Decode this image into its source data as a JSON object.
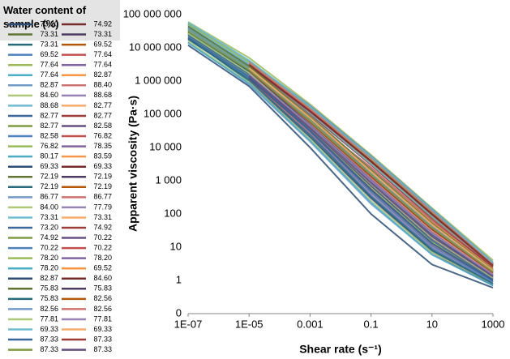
{
  "chart_data": {
    "type": "line",
    "y_label": "Apparent viscosity (Pa·s)",
    "x_label": "Shear rate (s⁻¹)",
    "legend_title": "Water content of sample (%)",
    "log_x": true,
    "log_y": true,
    "grid": false,
    "legend_position": "left",
    "x": [
      1e-07,
      1e-05,
      0.001,
      0.1,
      10,
      1000
    ],
    "xlim": [
      1e-07,
      1000
    ],
    "xticks": [
      {
        "value": 1e-07,
        "label": "1E-07"
      },
      {
        "value": 1e-05,
        "label": "1E-05"
      },
      0.001,
      0.1,
      10,
      1000
    ],
    "ylim": [
      0.1,
      100000000
    ],
    "yticks": [
      {
        "value": 0.1,
        "label": "0"
      },
      1,
      10,
      100,
      {
        "value": 1000,
        "label": "1 000"
      },
      {
        "value": 10000,
        "label": "10 000"
      },
      {
        "value": 100000,
        "label": "100 000"
      },
      {
        "value": 1000000,
        "label": "1 000 000"
      },
      {
        "value": 10000000,
        "label": "10 000 000"
      },
      {
        "value": 100000000,
        "label": "100 000 000"
      }
    ],
    "series": [
      {
        "name": "73.20",
        "color": "#2c4d75",
        "values": [
          30000000,
          2000000,
          60000,
          1500,
          40,
          2
        ]
      },
      {
        "name": "74.92",
        "color": "#772c2a",
        "values": [
          null,
          1500000,
          40000,
          800,
          20,
          1.5
        ]
      },
      {
        "name": "73.31",
        "color": "#5f7530",
        "values": [
          50000000,
          3000000,
          100000,
          3000,
          80,
          3
        ]
      },
      {
        "name": "73.31",
        "color": "#4d3b62",
        "values": [
          null,
          2500000,
          80000,
          2000,
          50,
          2
        ]
      },
      {
        "name": "73.31",
        "color": "#276a7c",
        "values": [
          20000000,
          1000000,
          20000,
          300,
          8,
          0.8
        ]
      },
      {
        "name": "69.52",
        "color": "#b65708",
        "values": [
          null,
          4000000,
          150000,
          5000,
          120,
          3
        ]
      },
      {
        "name": "69.52",
        "color": "#4f81bd",
        "values": [
          40000000,
          2000000,
          50000,
          1000,
          25,
          1.5
        ]
      },
      {
        "name": "77.64",
        "color": "#c0504d",
        "values": [
          null,
          1800000,
          70000,
          2500,
          60,
          2.5
        ]
      },
      {
        "name": "77.64",
        "color": "#9bbb59",
        "values": [
          60000000,
          5000000,
          200000,
          6000,
          150,
          4
        ]
      },
      {
        "name": "77.64",
        "color": "#8064a2",
        "values": [
          null,
          3000000,
          90000,
          1500,
          30,
          1.2
        ]
      },
      {
        "name": "77.64",
        "color": "#4bacc6",
        "values": [
          25000000,
          1500000,
          30000,
          500,
          12,
          1
        ]
      },
      {
        "name": "82.87",
        "color": "#f79646",
        "values": [
          null,
          2200000,
          60000,
          1200,
          30,
          1.5
        ]
      },
      {
        "name": "82.87",
        "color": "#729aca",
        "values": [
          15000000,
          800000,
          15000,
          200,
          6,
          0.7
        ]
      },
      {
        "name": "88.40",
        "color": "#cd7371",
        "values": [
          null,
          1200000,
          35000,
          700,
          18,
          1.2
        ]
      },
      {
        "name": "84.60",
        "color": "#afc97a",
        "values": [
          35000000,
          2500000,
          70000,
          1800,
          45,
          2
        ]
      },
      {
        "name": "88.68",
        "color": "#9983b5",
        "values": [
          null,
          1000000,
          25000,
          400,
          10,
          0.9
        ]
      },
      {
        "name": "88.68",
        "color": "#6fbdd1",
        "values": [
          45000000,
          3500000,
          120000,
          3500,
          90,
          3
        ]
      },
      {
        "name": "82.77",
        "color": "#f9ab6b",
        "values": [
          null,
          2000000,
          45000,
          900,
          22,
          1.4
        ]
      },
      {
        "name": "82.77",
        "color": "#3a679c",
        "values": [
          18000000,
          1200000,
          25000,
          350,
          9,
          0.8
        ]
      },
      {
        "name": "82.77",
        "color": "#9e3b39",
        "values": [
          null,
          2800000,
          100000,
          3000,
          70,
          2.5
        ]
      },
      {
        "name": "82.77",
        "color": "#7e9c40",
        "values": [
          28000000,
          1800000,
          40000,
          700,
          15,
          1
        ]
      },
      {
        "name": "82.58",
        "color": "#664f83",
        "values": [
          null,
          900000,
          20000,
          300,
          7,
          0.7
        ]
      },
      {
        "name": "82.58",
        "color": "#4f81bd",
        "values": [
          55000000,
          4000000,
          180000,
          5500,
          140,
          3.5
        ]
      },
      {
        "name": "76.82",
        "color": "#c0504d",
        "values": [
          null,
          3200000,
          130000,
          4000,
          100,
          3
        ]
      },
      {
        "name": "76.82",
        "color": "#9bbb59",
        "values": [
          22000000,
          1400000,
          35000,
          600,
          15,
          1.1
        ]
      },
      {
        "name": "78.35",
        "color": "#8064a2",
        "values": [
          null,
          1600000,
          50000,
          1100,
          28,
          1.6
        ]
      },
      {
        "name": "80.17",
        "color": "#4bacc6",
        "values": [
          38000000,
          2600000,
          80000,
          2000,
          50,
          2
        ]
      },
      {
        "name": "83.59",
        "color": "#f79646",
        "values": [
          null,
          1300000,
          30000,
          500,
          12,
          1
        ]
      },
      {
        "name": "69.33",
        "color": "#2c4d75",
        "values": [
          12000000,
          700000,
          10000,
          100,
          3,
          0.6
        ]
      },
      {
        "name": "69.33",
        "color": "#772c2a",
        "values": [
          null,
          2400000,
          70000,
          1600,
          40,
          2
        ]
      },
      {
        "name": "72.19",
        "color": "#5f7530",
        "values": [
          32000000,
          2100000,
          55000,
          1300,
          35,
          1.8
        ]
      },
      {
        "name": "72.19",
        "color": "#4d3b62",
        "values": [
          null,
          3800000,
          160000,
          5000,
          130,
          3.2
        ]
      },
      {
        "name": "72.19",
        "color": "#276a7c",
        "values": [
          26000000,
          1700000,
          45000,
          900,
          20,
          1.3
        ]
      },
      {
        "name": "72.19",
        "color": "#b65708",
        "values": [
          null,
          2700000,
          110000,
          3500,
          90,
          2.8
        ]
      },
      {
        "name": "86.77",
        "color": "#729aca",
        "values": [
          42000000,
          3000000,
          90000,
          2200,
          55,
          2.2
        ]
      },
      {
        "name": "86.77",
        "color": "#cd7371",
        "values": [
          null,
          1100000,
          28000,
          450,
          11,
          1
        ]
      },
      {
        "name": "84.00",
        "color": "#afc97a",
        "values": [
          16000000,
          900000,
          18000,
          250,
          7,
          0.8
        ]
      },
      {
        "name": "77.79",
        "color": "#9983b5",
        "values": [
          null,
          2300000,
          65000,
          1400,
          35,
          1.7
        ]
      },
      {
        "name": "73.31",
        "color": "#6fbdd1",
        "values": [
          48000000,
          3300000,
          110000,
          3200,
          85,
          2.8
        ]
      },
      {
        "name": "73.31",
        "color": "#f9ab6b",
        "values": [
          null,
          1900000,
          55000,
          1300,
          32,
          1.6
        ]
      },
      {
        "name": "73.20",
        "color": "#3a679c",
        "values": [
          24000000,
          1600000,
          38000,
          700,
          16,
          1.1
        ]
      },
      {
        "name": "74.92",
        "color": "#9e3b39",
        "values": [
          null,
          2900000,
          120000,
          3800,
          95,
          2.7
        ]
      },
      {
        "name": "74.92",
        "color": "#7e9c40",
        "values": [
          36000000,
          2400000,
          75000,
          1900,
          48,
          2
        ]
      },
      {
        "name": "70.22",
        "color": "#664f83",
        "values": [
          null,
          1400000,
          38000,
          750,
          18,
          1.2
        ]
      },
      {
        "name": "70.22",
        "color": "#4f81bd",
        "values": [
          20000000,
          1300000,
          30000,
          450,
          11,
          0.9
        ]
      },
      {
        "name": "70.22",
        "color": "#c0504d",
        "values": [
          null,
          3400000,
          140000,
          4500,
          110,
          3
        ]
      },
      {
        "name": "78.20",
        "color": "#9bbb59",
        "values": [
          52000000,
          3700000,
          150000,
          4500,
          110,
          3
        ]
      },
      {
        "name": "78.20",
        "color": "#8064a2",
        "values": [
          null,
          1700000,
          42000,
          850,
          20,
          1.3
        ]
      },
      {
        "name": "78.20",
        "color": "#4bacc6",
        "values": [
          14000000,
          850000,
          16000,
          220,
          6,
          0.7
        ]
      },
      {
        "name": "69.52",
        "color": "#f79646",
        "values": [
          null,
          2600000,
          85000,
          2100,
          55,
          2.2
        ]
      },
      {
        "name": "82.87",
        "color": "#2c4d75",
        "values": [
          30000000,
          1900000,
          48000,
          1000,
          24,
          1.4
        ]
      },
      {
        "name": "84.60",
        "color": "#772c2a",
        "values": [
          null,
          3100000,
          125000,
          3900,
          100,
          2.9
        ]
      },
      {
        "name": "75.83",
        "color": "#5f7530",
        "values": [
          44000000,
          2800000,
          85000,
          2100,
          52,
          2.1
        ]
      },
      {
        "name": "75.83",
        "color": "#4d3b62",
        "values": [
          null,
          1250000,
          32000,
          550,
          13,
          1
        ]
      },
      {
        "name": "75.83",
        "color": "#276a7c",
        "values": [
          19000000,
          1100000,
          22000,
          320,
          8,
          0.8
        ]
      },
      {
        "name": "82.56",
        "color": "#b65708",
        "values": [
          null,
          2100000,
          60000,
          1400,
          36,
          1.8
        ]
      },
      {
        "name": "82.56",
        "color": "#729aca",
        "values": [
          34000000,
          2300000,
          65000,
          1600,
          42,
          1.9
        ]
      },
      {
        "name": "82.56",
        "color": "#cd7371",
        "values": [
          null,
          3600000,
          145000,
          4800,
          120,
          3.2
        ]
      },
      {
        "name": "77.81",
        "color": "#afc97a",
        "values": [
          27000000,
          1750000,
          42000,
          800,
          19,
          1.2
        ]
      },
      {
        "name": "77.81",
        "color": "#9983b5",
        "values": [
          null,
          1550000,
          46000,
          1000,
          26,
          1.5
        ]
      },
      {
        "name": "69.33",
        "color": "#6fbdd1",
        "values": [
          58000000,
          4200000,
          170000,
          5200,
          135,
          3.4
        ]
      },
      {
        "name": "69.33",
        "color": "#f9ab6b",
        "values": [
          null,
          2450000,
          78000,
          1900,
          48,
          2
        ]
      },
      {
        "name": "87.33",
        "color": "#3a679c",
        "values": [
          21000000,
          1350000,
          32000,
          520,
          13,
          1
        ]
      },
      {
        "name": "87.33",
        "color": "#9e3b39",
        "values": [
          null,
          2050000,
          58000,
          1350,
          34,
          1.7
        ]
      },
      {
        "name": "87.33",
        "color": "#7e9c40",
        "values": [
          31000000,
          2150000,
          62000,
          1500,
          38,
          1.8
        ]
      },
      {
        "name": "87.33",
        "color": "#664f83",
        "values": [
          null,
          1450000,
          40000,
          850,
          21,
          1.3
        ]
      }
    ]
  }
}
